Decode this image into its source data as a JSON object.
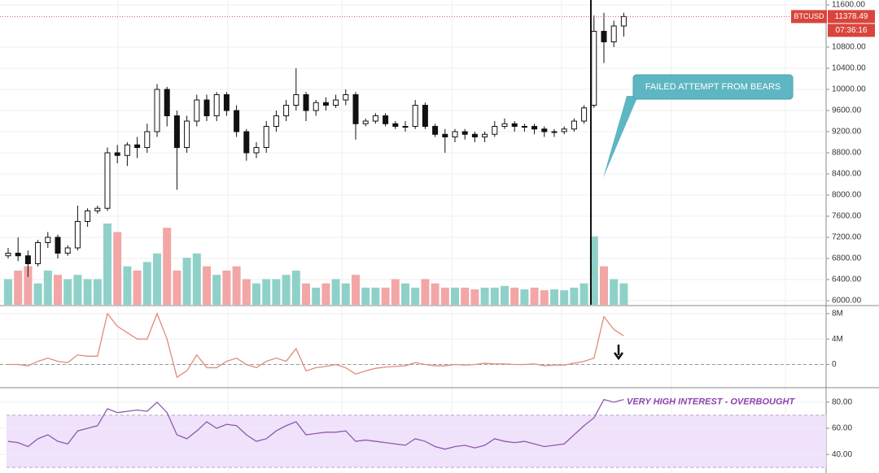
{
  "chart_data": [
    {
      "type": "candlestick",
      "symbol": "BTCUSD",
      "countdown": "07:36:16",
      "annotation": "FAILED ATTEMPT FROM BEARS",
      "up_color": "#8fd1c9",
      "down_color": "#f2a6a6",
      "grid": true,
      "ylim": [
        6000,
        11600
      ],
      "yticks": [
        {
          "value": 11600,
          "label": "11600.00"
        },
        {
          "value": 10800,
          "label": "10800.00"
        },
        {
          "value": 10400,
          "label": "10400.00"
        },
        {
          "value": 10000,
          "label": "10000.00"
        },
        {
          "value": 9600,
          "label": "9600.00"
        },
        {
          "value": 9200,
          "label": "9200.00"
        },
        {
          "value": 8800,
          "label": "8800.00"
        },
        {
          "value": 8400,
          "label": "8400.00"
        },
        {
          "value": 8000,
          "label": "8000.00"
        },
        {
          "value": 7600,
          "label": "7600.00"
        },
        {
          "value": 7200,
          "label": "7200.00"
        },
        {
          "value": 6800,
          "label": "6800.00"
        },
        {
          "value": 6400,
          "label": "6400.00"
        },
        {
          "value": 6000,
          "label": "6000.00"
        }
      ],
      "open": [
        6850,
        6900,
        6850,
        6700,
        7100,
        7200,
        6900,
        7000,
        7500,
        7700,
        7750,
        8800,
        8750,
        8950,
        8900,
        9200,
        10000,
        9500,
        8900,
        9400,
        9800,
        9500,
        9900,
        9600,
        9200,
        8800,
        8900,
        9300,
        9500,
        9700,
        9900,
        9600,
        9750,
        9700,
        9800,
        9900,
        9350,
        9400,
        9500,
        9350,
        9300,
        9300,
        9700,
        9300,
        9150,
        9100,
        9200,
        9150,
        9100,
        9150,
        9300,
        9350,
        9300,
        9300,
        9250,
        9200,
        9200,
        9250,
        9400,
        9700,
        11100,
        10900,
        11200
      ],
      "high": [
        7000,
        7200,
        6950,
        7150,
        7300,
        7250,
        7050,
        7800,
        7750,
        7800,
        8900,
        8950,
        9000,
        9100,
        9350,
        10100,
        10050,
        9600,
        9500,
        9900,
        9900,
        9950,
        9950,
        9700,
        9250,
        9000,
        9400,
        9600,
        9800,
        10400,
        9950,
        9800,
        9850,
        9900,
        10000,
        9950,
        9450,
        9550,
        9550,
        9400,
        9400,
        9800,
        9750,
        9350,
        9250,
        9250,
        9250,
        9200,
        9200,
        9400,
        9450,
        9400,
        9350,
        9350,
        9300,
        9250,
        9300,
        9450,
        9700,
        11400,
        11450,
        11300,
        11450
      ],
      "low": [
        6800,
        6750,
        6450,
        6650,
        7000,
        6800,
        6850,
        6950,
        7400,
        7650,
        7700,
        8600,
        8550,
        8700,
        8800,
        9100,
        9300,
        8100,
        8800,
        9300,
        9400,
        9400,
        9500,
        9100,
        8650,
        8700,
        8800,
        9200,
        9400,
        9600,
        9400,
        9500,
        9600,
        9650,
        9700,
        9050,
        9300,
        9350,
        9300,
        9250,
        9200,
        9250,
        9250,
        9100,
        8800,
        9000,
        9050,
        9000,
        9000,
        9100,
        9250,
        9200,
        9200,
        9150,
        9100,
        9100,
        9150,
        9200,
        9350,
        9650,
        10500,
        10800,
        11000
      ],
      "close": [
        6900,
        6850,
        6700,
        7100,
        7200,
        6900,
        7000,
        7500,
        7700,
        7750,
        8800,
        8750,
        8950,
        8900,
        9200,
        10000,
        9500,
        8900,
        9400,
        9800,
        9500,
        9900,
        9600,
        9200,
        8800,
        8900,
        9300,
        9500,
        9700,
        9900,
        9600,
        9750,
        9700,
        9800,
        9900,
        9350,
        9400,
        9500,
        9350,
        9300,
        9300,
        9700,
        9300,
        9150,
        9100,
        9200,
        9150,
        9100,
        9150,
        9300,
        9350,
        9300,
        9300,
        9250,
        9200,
        9200,
        9250,
        9400,
        9650,
        11100,
        10900,
        11200,
        11378.49
      ],
      "volume": [
        30,
        40,
        45,
        25,
        40,
        35,
        30,
        35,
        30,
        30,
        95,
        85,
        45,
        40,
        50,
        60,
        90,
        40,
        55,
        60,
        45,
        35,
        40,
        45,
        30,
        25,
        30,
        30,
        35,
        40,
        25,
        20,
        25,
        30,
        25,
        35,
        20,
        20,
        20,
        30,
        25,
        20,
        30,
        25,
        20,
        20,
        20,
        18,
        20,
        20,
        22,
        20,
        18,
        20,
        17,
        18,
        17,
        20,
        25,
        80,
        45,
        30,
        25
      ]
    },
    {
      "type": "line",
      "color": "#e08c7a",
      "ylim": [
        -3000000,
        9000000
      ],
      "yticks": [
        {
          "value": 8000000,
          "label": "8M"
        },
        {
          "value": 4000000,
          "label": "4M"
        },
        0
      ],
      "values": [
        0,
        0,
        -200000,
        500000,
        1000000,
        500000,
        300000,
        1500000,
        1300000,
        1300000,
        8000000,
        6000000,
        5000000,
        4000000,
        4000000,
        8000000,
        4000000,
        -2000000,
        -1000000,
        1500000,
        -500000,
        -500000,
        500000,
        1000000,
        0,
        -500000,
        500000,
        1000000,
        500000,
        2500000,
        -1000000,
        -500000,
        -300000,
        0,
        -500000,
        -1500000,
        -1000000,
        -600000,
        -400000,
        -300000,
        -200000,
        300000,
        0,
        -200000,
        -200000,
        0,
        -100000,
        0,
        200000,
        100000,
        100000,
        0,
        0,
        100000,
        -200000,
        -100000,
        -100000,
        200000,
        500000,
        1000000,
        7500000,
        5500000,
        4500000
      ]
    },
    {
      "type": "line",
      "color": "#8e5ab0",
      "annotation": "VERY HIGH INTEREST - OVERBOUGHT",
      "band": [
        30,
        70
      ],
      "ylim": [
        27,
        88
      ],
      "yticks": [
        {
          "value": 80,
          "label": "80.00"
        },
        {
          "value": 60,
          "label": "60.00"
        },
        {
          "value": 40,
          "label": "40.00"
        }
      ],
      "values": [
        50,
        49,
        46,
        52,
        55,
        50,
        48,
        58,
        60,
        62,
        75,
        72,
        73,
        74,
        73,
        80,
        72,
        55,
        52,
        58,
        65,
        60,
        63,
        62,
        55,
        50,
        52,
        58,
        62,
        65,
        55,
        56,
        57,
        57,
        58,
        50,
        51,
        50,
        49,
        48,
        47,
        52,
        50,
        46,
        44,
        46,
        47,
        45,
        47,
        52,
        50,
        49,
        50,
        48,
        46,
        47,
        48,
        55,
        62,
        68,
        82,
        80,
        82
      ]
    }
  ]
}
